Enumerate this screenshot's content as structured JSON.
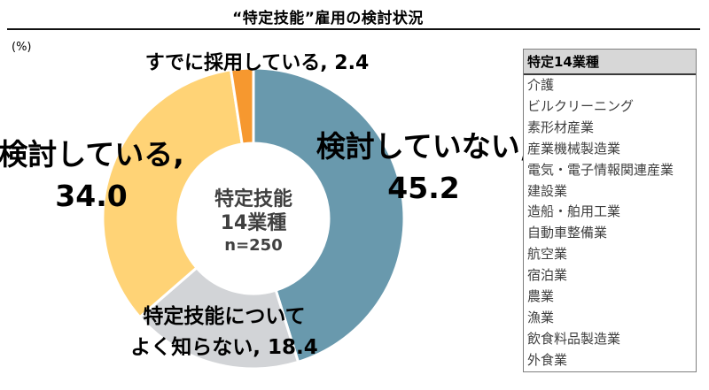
{
  "page": {
    "title": "“特定技能”雇用の検討状況",
    "unit_label": "(%)"
  },
  "chart_data": {
    "type": "pie",
    "subtype": "donut",
    "title": "“特定技能”雇用の検討状況",
    "unit": "%",
    "start_angle_deg": 0,
    "direction": "clockwise",
    "total": 100.0,
    "center_label": {
      "line1": "特定技能",
      "line2": "14業種",
      "line3": "n=250"
    },
    "segments": [
      {
        "name": "検討していない",
        "value": 45.2,
        "color": "#6999AD",
        "callout": {
          "line1": "検討していない,",
          "line2": "45.2"
        }
      },
      {
        "name": "特定技能についてよく知らない",
        "value": 18.4,
        "color": "#D2D4D7",
        "callout": {
          "line1": "特定技能について",
          "line2": "よく知らない, 18.4"
        }
      },
      {
        "name": "検討している",
        "value": 34.0,
        "color": "#FFD376",
        "callout": {
          "line1": "検討している,",
          "line2": "34.0"
        }
      },
      {
        "name": "すでに採用している",
        "value": 2.4,
        "color": "#F6982F",
        "callout": {
          "line1": "すでに採用している, 2.4"
        }
      }
    ]
  },
  "industry_table": {
    "header": "特定14業種",
    "items": [
      "介護",
      "ビルクリーニング",
      "素形材産業",
      "産業機械製造業",
      "電気・電子情報関連産業",
      "建設業",
      "造船・舶用工業",
      "自動車整備業",
      "航空業",
      "宿泊業",
      "農業",
      "漁業",
      "飲食料品製造業",
      "外食業"
    ]
  }
}
